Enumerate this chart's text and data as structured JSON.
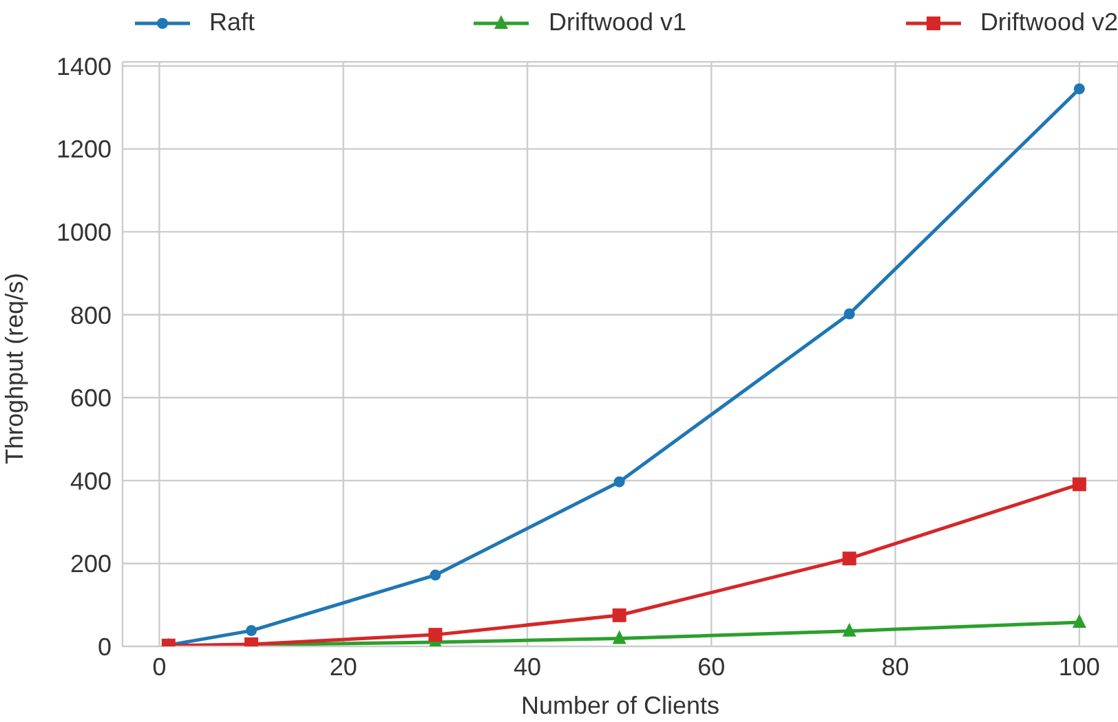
{
  "chart_data": {
    "type": "line",
    "xlabel": "Number of Clients",
    "ylabel": "Throghput (req/s)",
    "x": [
      1,
      10,
      30,
      50,
      75,
      100
    ],
    "series": [
      {
        "name": "Raft",
        "color": "#1f77b4",
        "marker": "circle",
        "values": [
          3,
          38,
          172,
          397,
          802,
          1345
        ]
      },
      {
        "name": "Driftwood v1",
        "color": "#2ca02c",
        "marker": "triangle",
        "values": [
          1,
          null,
          10,
          19,
          37,
          58
        ]
      },
      {
        "name": "Driftwood v2",
        "color": "#d62728",
        "marker": "square",
        "values": [
          2,
          5,
          28,
          75,
          212,
          391
        ]
      }
    ],
    "xlim": [
      -4,
      104.2
    ],
    "xticks": [
      0,
      20,
      40,
      60,
      80,
      100
    ],
    "ylim": [
      0,
      1410
    ],
    "yticks": [
      0,
      200,
      400,
      600,
      800,
      1000,
      1200,
      1400
    ],
    "grid": true,
    "legend": "top",
    "line_style": "solid"
  }
}
